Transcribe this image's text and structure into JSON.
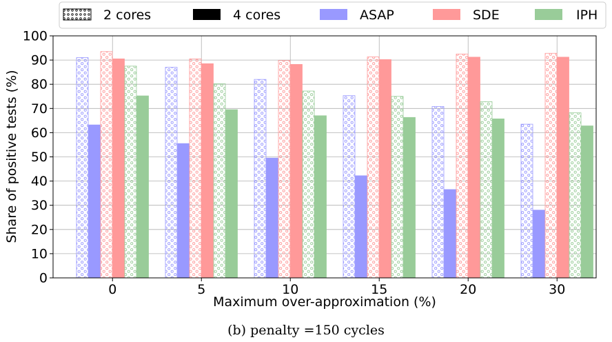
{
  "chart_data": {
    "type": "bar",
    "categories": [
      "0",
      "5",
      "10",
      "15",
      "20",
      "30"
    ],
    "xlabel": "Maximum over-approximation (%)",
    "ylabel": "Share of positive tests (%)",
    "ylim": [
      0,
      100
    ],
    "yticks": [
      "0",
      "10",
      "20",
      "30",
      "40",
      "50",
      "60",
      "70",
      "80",
      "90",
      "100"
    ],
    "grid": true,
    "legend": {
      "placement": "top",
      "entries": [
        {
          "label": "2 cores",
          "style": "dotted-hatch"
        },
        {
          "label": "4 cores",
          "style": "solid"
        },
        {
          "label": "ASAP",
          "color": "#9999ff"
        },
        {
          "label": "SDE",
          "color": "#ff9999"
        },
        {
          "label": "IPH",
          "color": "#99cc99"
        }
      ]
    },
    "series": [
      {
        "name": "ASAP 2 cores",
        "method": "ASAP",
        "cores": "2",
        "color": "#9999ff",
        "hatch": true,
        "values": [
          91,
          87,
          82,
          75.3,
          70.8,
          63.5
        ]
      },
      {
        "name": "ASAP 4 cores",
        "method": "ASAP",
        "cores": "4",
        "color": "#9999ff",
        "hatch": false,
        "values": [
          63.2,
          55.5,
          49.5,
          42.2,
          36.5,
          28
        ]
      },
      {
        "name": "SDE 2 cores",
        "method": "SDE",
        "cores": "2",
        "color": "#ff9999",
        "hatch": true,
        "values": [
          93.5,
          90.5,
          89.8,
          91.3,
          92.5,
          92.8
        ]
      },
      {
        "name": "SDE 4 cores",
        "method": "SDE",
        "cores": "4",
        "color": "#ff9999",
        "hatch": false,
        "values": [
          90.5,
          88.5,
          88.2,
          90.2,
          91.2,
          91.2
        ]
      },
      {
        "name": "IPH 2 cores",
        "method": "IPH",
        "cores": "2",
        "color": "#99cc99",
        "hatch": true,
        "values": [
          87.5,
          80.2,
          77.2,
          75,
          72.8,
          68.2
        ]
      },
      {
        "name": "IPH 4 cores",
        "method": "IPH",
        "cores": "4",
        "color": "#99cc99",
        "hatch": false,
        "values": [
          75.2,
          69.5,
          67,
          66.3,
          65.7,
          62.8
        ]
      }
    ]
  },
  "caption": "(b) penalty =150 cycles"
}
